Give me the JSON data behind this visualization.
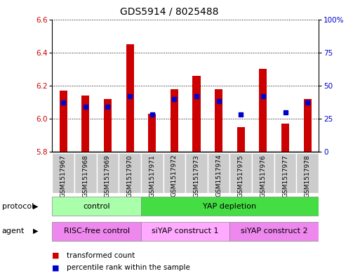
{
  "title": "GDS5914 / 8025488",
  "samples": [
    "GSM1517967",
    "GSM1517968",
    "GSM1517969",
    "GSM1517970",
    "GSM1517971",
    "GSM1517972",
    "GSM1517973",
    "GSM1517974",
    "GSM1517975",
    "GSM1517976",
    "GSM1517977",
    "GSM1517978"
  ],
  "bar_values": [
    6.17,
    6.14,
    6.12,
    6.45,
    6.03,
    6.18,
    6.26,
    6.18,
    5.95,
    6.3,
    5.97,
    6.12
  ],
  "percentile_values": [
    37,
    34,
    34,
    42,
    28,
    40,
    42,
    38,
    28,
    42,
    30,
    37
  ],
  "bar_base": 5.8,
  "left_ylim": [
    5.8,
    6.6
  ],
  "right_ylim": [
    0,
    100
  ],
  "left_yticks": [
    5.8,
    6.0,
    6.2,
    6.4,
    6.6
  ],
  "right_yticks": [
    0,
    25,
    50,
    75,
    100
  ],
  "right_yticklabels": [
    "0",
    "25",
    "50",
    "75",
    "100%"
  ],
  "bar_color": "#cc0000",
  "percentile_color": "#0000cc",
  "protocol_control_color": "#aaffaa",
  "protocol_yap_color": "#44dd44",
  "agent_risc_color": "#ee88ee",
  "agent_siyap1_color": "#ffaaff",
  "agent_siyap2_color": "#ee88ee",
  "xtick_bg_color": "#cccccc",
  "legend_bar_label": "transformed count",
  "legend_pct_label": "percentile rank within the sample",
  "bar_width": 0.35,
  "title_fontsize": 10,
  "axis_tick_fontsize": 7.5,
  "sample_fontsize": 6.5,
  "row_fontsize": 8,
  "legend_fontsize": 7.5
}
